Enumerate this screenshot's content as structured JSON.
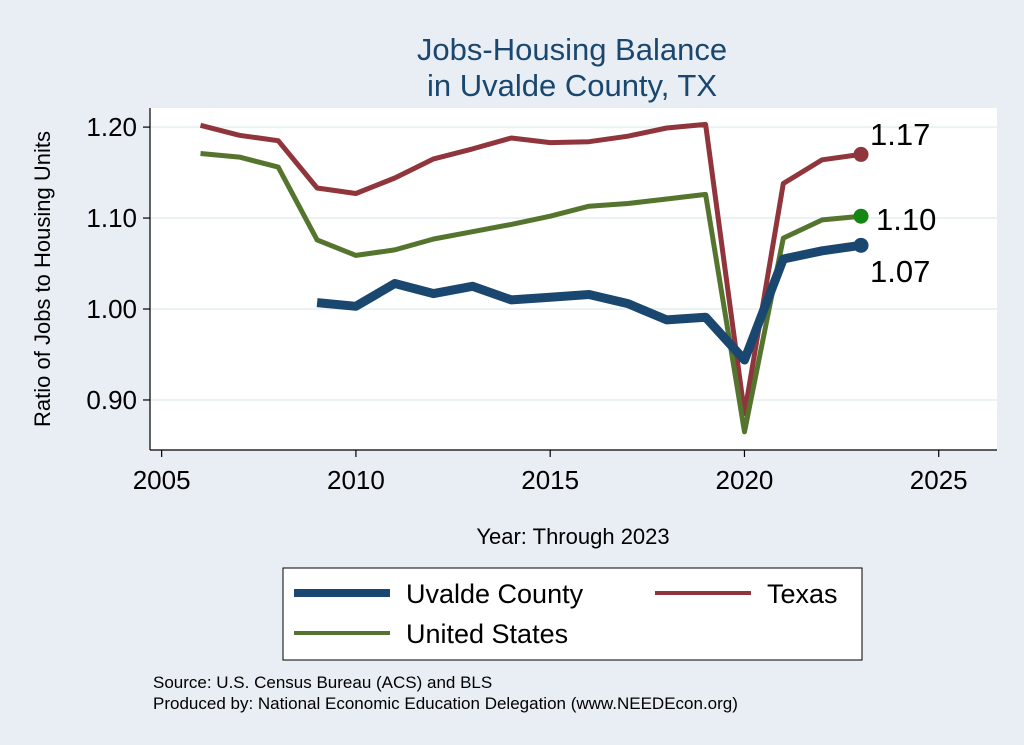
{
  "chart_data": {
    "type": "line",
    "title": [
      "Jobs-Housing Balance",
      "in Uvalde County, TX"
    ],
    "xlabel": "Year: Through 2023",
    "ylabel": "Ratio of Jobs to Housing Units",
    "xlim": [
      2004.7,
      2026.5
    ],
    "ylim": [
      0.845,
      1.221
    ],
    "xticks": [
      2005,
      2010,
      2015,
      2020,
      2025
    ],
    "xtick_labels": [
      "2005",
      "2010",
      "2015",
      "2020",
      "2025"
    ],
    "yticks": [
      0.9,
      1.0,
      1.1,
      1.2
    ],
    "ytick_labels": [
      "0.90",
      "1.00",
      "1.10",
      "1.20"
    ],
    "grid": true,
    "legend_position": "bottom",
    "series": [
      {
        "name": "Uvalde County",
        "color": "#1a476f",
        "end_label": "1.07",
        "x": [
          2009,
          2010,
          2011,
          2012,
          2013,
          2014,
          2015,
          2016,
          2017,
          2018,
          2019,
          2020,
          2021,
          2022,
          2023
        ],
        "values": [
          1.007,
          1.003,
          1.028,
          1.017,
          1.025,
          1.01,
          1.013,
          1.016,
          1.006,
          0.988,
          0.991,
          0.944,
          1.055,
          1.064,
          1.07
        ]
      },
      {
        "name": "Texas",
        "color": "#90353b",
        "end_label": "1.17",
        "x": [
          2006,
          2007,
          2008,
          2009,
          2010,
          2011,
          2012,
          2013,
          2014,
          2015,
          2016,
          2017,
          2018,
          2019,
          2020,
          2021,
          2022,
          2023
        ],
        "values": [
          1.202,
          1.191,
          1.185,
          1.133,
          1.127,
          1.144,
          1.165,
          1.176,
          1.188,
          1.183,
          1.184,
          1.19,
          1.199,
          1.203,
          0.885,
          1.138,
          1.164,
          1.17
        ]
      },
      {
        "name": "United States",
        "color": "#55752f",
        "end_label": "1.10",
        "x": [
          2006,
          2007,
          2008,
          2009,
          2010,
          2011,
          2012,
          2013,
          2014,
          2015,
          2016,
          2017,
          2018,
          2019,
          2020,
          2021,
          2022,
          2023
        ],
        "values": [
          1.171,
          1.167,
          1.156,
          1.076,
          1.059,
          1.065,
          1.077,
          1.085,
          1.093,
          1.102,
          1.113,
          1.116,
          1.121,
          1.126,
          0.865,
          1.078,
          1.098,
          1.102
        ]
      }
    ],
    "end_dot_colors": [
      "#1a476f",
      "#90353b",
      "#138613"
    ]
  },
  "legend": {
    "items": [
      "Uvalde County",
      "Texas",
      "United States"
    ]
  },
  "source": {
    "line1": "Source: U.S. Census Bureau (ACS) and BLS",
    "line2": "Produced by: National Economic Education Delegation (www.NEEDEcon.org)"
  }
}
